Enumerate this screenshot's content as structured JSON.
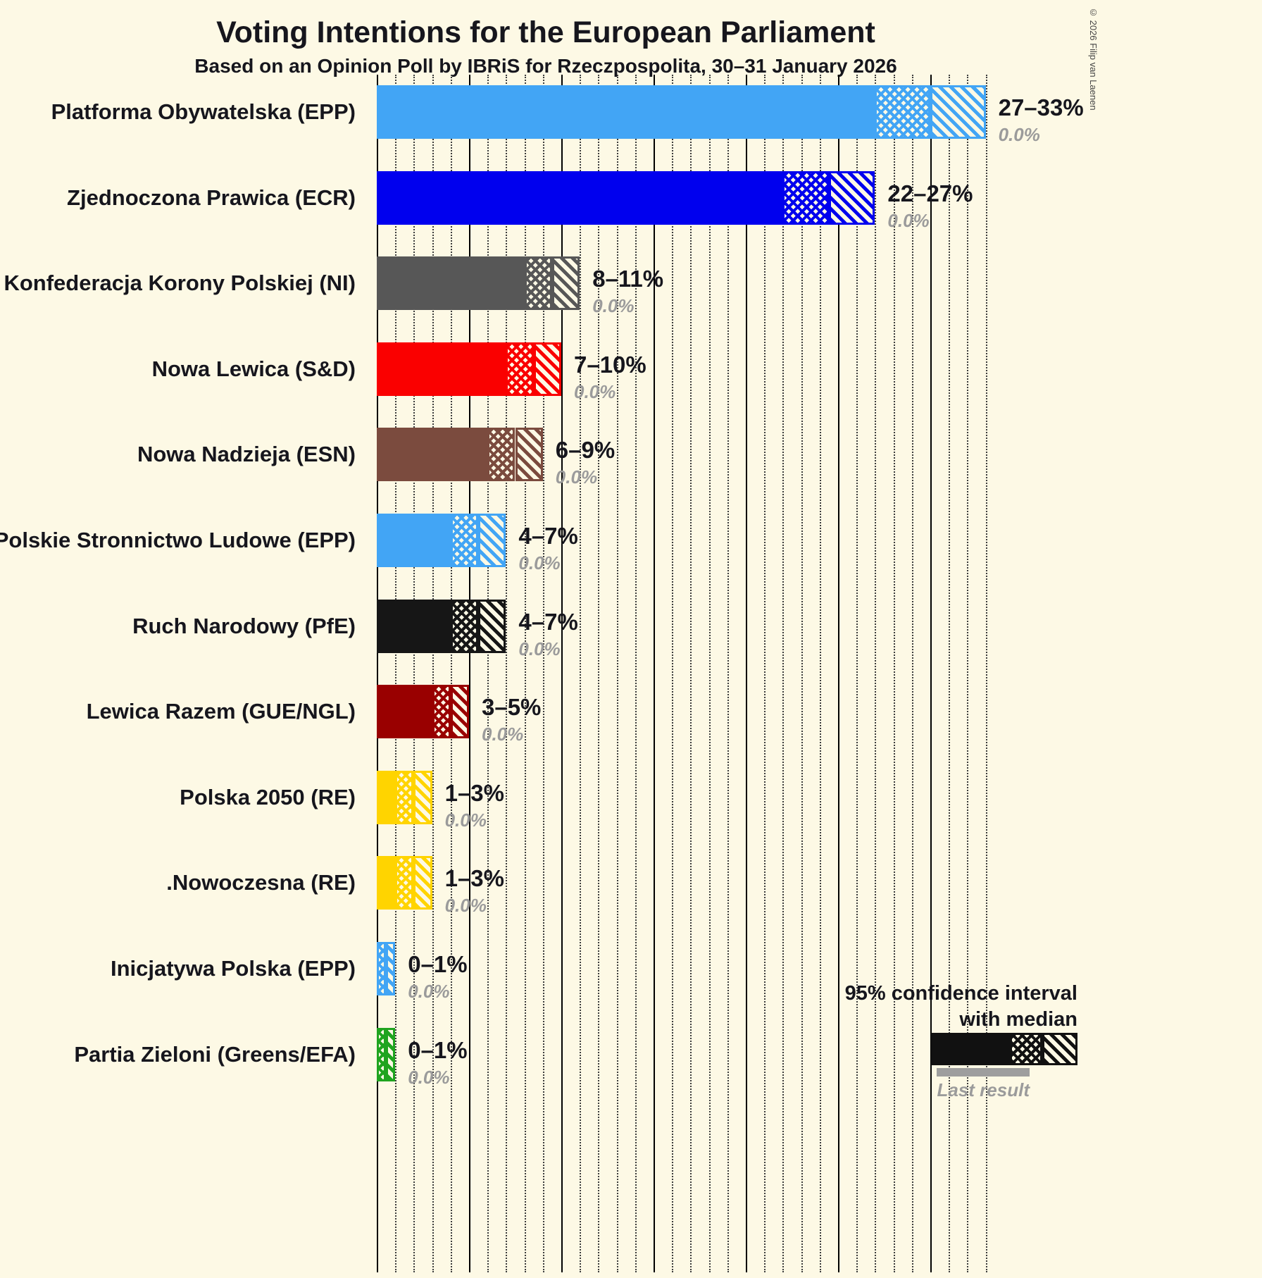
{
  "copyright": "© 2026 Filip van Laenen",
  "legend": {
    "ci_label_line1": "95% confidence interval",
    "ci_label_line2": "with median",
    "last_result_label": "Last result"
  },
  "chart_data": {
    "type": "bar",
    "orientation": "horizontal",
    "title": "Voting Intentions for the European Parliament",
    "subtitle": "Based on an Opinion Poll by IBRiS for Rzeczpospolita, 30–31 January 2026",
    "x_axis": {
      "unit": "percent",
      "min": 0,
      "max": 35,
      "dotted_gridline_step": 1,
      "solid_gridline_step": 5
    },
    "bar_encoding": "solid fill up to ci_low, crosshatch from ci_low to median, diagonal hatch from median to ci_high",
    "parties": [
      {
        "label": "Platforma Obywatelska (EPP)",
        "ci_low": 27,
        "median": 30,
        "ci_high": 33,
        "range_label": "27–33%",
        "last_result": 0.0,
        "last_result_label": "0.0%",
        "color": "#42A5F5"
      },
      {
        "label": "Zjednoczona Prawica (ECR)",
        "ci_low": 22,
        "median": 24.5,
        "ci_high": 27,
        "range_label": "22–27%",
        "last_result": 0.0,
        "last_result_label": "0.0%",
        "color": "#0000EE"
      },
      {
        "label": "Konfederacja Korony Polskiej (NI)",
        "ci_low": 8,
        "median": 9.5,
        "ci_high": 11,
        "range_label": "8–11%",
        "last_result": 0.0,
        "last_result_label": "0.0%",
        "color": "#575757"
      },
      {
        "label": "Nowa Lewica (S&D)",
        "ci_low": 7,
        "median": 8.5,
        "ci_high": 10,
        "range_label": "7–10%",
        "last_result": 0.0,
        "last_result_label": "0.0%",
        "color": "#FA0000"
      },
      {
        "label": "Nowa Nadzieja (ESN)",
        "ci_low": 6,
        "median": 7.5,
        "ci_high": 9,
        "range_label": "6–9%",
        "last_result": 0.0,
        "last_result_label": "0.0%",
        "color": "#7B4B3E"
      },
      {
        "label": "Polskie Stronnictwo Ludowe (EPP)",
        "ci_low": 4,
        "median": 5.5,
        "ci_high": 7,
        "range_label": "4–7%",
        "last_result": 0.0,
        "last_result_label": "0.0%",
        "color": "#42A5F5"
      },
      {
        "label": "Ruch Narodowy (PfE)",
        "ci_low": 4,
        "median": 5.5,
        "ci_high": 7,
        "range_label": "4–7%",
        "last_result": 0.0,
        "last_result_label": "0.0%",
        "color": "#161616"
      },
      {
        "label": "Lewica Razem (GUE/NGL)",
        "ci_low": 3,
        "median": 4,
        "ci_high": 5,
        "range_label": "3–5%",
        "last_result": 0.0,
        "last_result_label": "0.0%",
        "color": "#990000"
      },
      {
        "label": "Polska 2050 (RE)",
        "ci_low": 1,
        "median": 2,
        "ci_high": 3,
        "range_label": "1–3%",
        "last_result": 0.0,
        "last_result_label": "0.0%",
        "color": "#FFD400"
      },
      {
        "label": ".Nowoczesna (RE)",
        "ci_low": 1,
        "median": 2,
        "ci_high": 3,
        "range_label": "1–3%",
        "last_result": 0.0,
        "last_result_label": "0.0%",
        "color": "#FFD400"
      },
      {
        "label": "Inicjatywa Polska (EPP)",
        "ci_low": 0,
        "median": 0.5,
        "ci_high": 1,
        "range_label": "0–1%",
        "last_result": 0.0,
        "last_result_label": "0.0%",
        "color": "#42A5F5"
      },
      {
        "label": "Partia Zieloni (Greens/EFA)",
        "ci_low": 0,
        "median": 0.5,
        "ci_high": 1,
        "range_label": "0–1%",
        "last_result": 0.0,
        "last_result_label": "0.0%",
        "color": "#1FA41F"
      }
    ]
  }
}
